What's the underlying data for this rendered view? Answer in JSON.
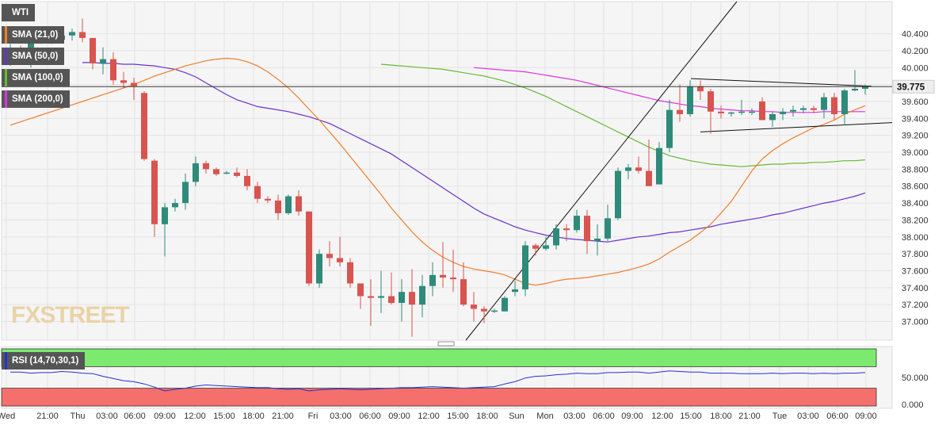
{
  "chart_data": [
    {
      "type": "candlestick",
      "instrument": "WTI",
      "timeframe": "1h",
      "price_label": "39.775",
      "y_ticks": [
        "40.400",
        "40.200",
        "40.000",
        "39.800",
        "39.600",
        "39.400",
        "39.200",
        "39.000",
        "38.800",
        "38.600",
        "38.400",
        "38.200",
        "38.000",
        "37.800",
        "37.600",
        "37.400",
        "37.200",
        "37.000"
      ],
      "ylim": [
        36.78,
        40.78
      ],
      "x_ticks": [
        "Wed",
        "21:00",
        "Thu",
        "03:00",
        "06:00",
        "09:00",
        "12:00",
        "15:00",
        "18:00",
        "21:00",
        "Fri",
        "03:00",
        "06:00",
        "09:00",
        "12:00",
        "15:00",
        "18:00",
        "Sun",
        "Mon",
        "03:00",
        "06:00",
        "09:00",
        "12:00",
        "15:00",
        "18:00",
        "21:00",
        "Tue",
        "03:00",
        "06:00",
        "09:00"
      ],
      "legend": [
        "WTI",
        "SMA (21,0)",
        "SMA (50,0)",
        "SMA (100,0)",
        "SMA (200,0)"
      ],
      "colors": {
        "up": "#2e8b7a",
        "down": "#d9534f",
        "sma21": "#f07d2a",
        "sma50": "#6633cc",
        "sma100": "#66bb33",
        "sma200": "#dd33dd",
        "price_line": "#3a3a3a",
        "legend_bg": "#555555"
      },
      "candles": [
        [
          40.1,
          40.28,
          40.02,
          40.22
        ],
        [
          40.22,
          40.26,
          40.05,
          40.1
        ],
        [
          40.1,
          40.4,
          40.0,
          40.38
        ],
        [
          40.38,
          40.42,
          40.28,
          40.32
        ],
        [
          40.32,
          40.36,
          40.28,
          40.33
        ],
        [
          40.33,
          40.4,
          40.3,
          40.38
        ],
        [
          40.38,
          40.46,
          40.32,
          40.42
        ],
        [
          40.42,
          40.58,
          40.3,
          40.35
        ],
        [
          40.35,
          40.35,
          39.98,
          40.05
        ],
        [
          40.05,
          40.24,
          39.92,
          40.1
        ],
        [
          40.1,
          40.18,
          39.8,
          39.85
        ],
        [
          39.85,
          39.95,
          39.76,
          39.82
        ],
        [
          39.82,
          39.88,
          39.62,
          39.78
        ],
        [
          39.7,
          39.72,
          38.9,
          38.92
        ],
        [
          38.9,
          38.92,
          38.0,
          38.15
        ],
        [
          38.15,
          38.4,
          37.77,
          38.35
        ],
        [
          38.35,
          38.45,
          38.3,
          38.4
        ],
        [
          38.4,
          38.75,
          38.32,
          38.65
        ],
        [
          38.65,
          38.95,
          38.6,
          38.87
        ],
        [
          38.87,
          38.9,
          38.75,
          38.8
        ],
        [
          38.8,
          38.82,
          38.72,
          38.74
        ],
        [
          38.75,
          38.78,
          38.74,
          38.76
        ],
        [
          38.76,
          38.82,
          38.7,
          38.72
        ],
        [
          38.72,
          38.8,
          38.55,
          38.6
        ],
        [
          38.6,
          38.65,
          38.4,
          38.45
        ],
        [
          38.45,
          38.48,
          38.4,
          38.43
        ],
        [
          38.43,
          38.5,
          38.2,
          38.28
        ],
        [
          38.28,
          38.5,
          38.26,
          38.48
        ],
        [
          38.48,
          38.55,
          38.25,
          38.3
        ],
        [
          38.3,
          38.3,
          37.42,
          37.45
        ],
        [
          37.45,
          37.85,
          37.4,
          37.8
        ],
        [
          37.8,
          37.95,
          37.65,
          37.75
        ],
        [
          37.75,
          38.0,
          37.65,
          37.7
        ],
        [
          37.7,
          37.75,
          37.4,
          37.45
        ],
        [
          37.45,
          37.45,
          37.15,
          37.3
        ],
        [
          37.3,
          37.5,
          36.95,
          37.28
        ],
        [
          37.28,
          37.6,
          37.1,
          37.3
        ],
        [
          37.3,
          37.58,
          37.2,
          37.22
        ],
        [
          37.22,
          37.5,
          37.0,
          37.35
        ],
        [
          37.35,
          37.62,
          36.82,
          37.2
        ],
        [
          37.2,
          37.55,
          37.05,
          37.42
        ],
        [
          37.42,
          37.7,
          37.3,
          37.55
        ],
        [
          37.55,
          37.94,
          37.4,
          37.52
        ],
        [
          37.52,
          37.85,
          37.35,
          37.5
        ],
        [
          37.5,
          37.7,
          37.18,
          37.2
        ],
        [
          37.2,
          37.35,
          37.0,
          37.15
        ],
        [
          37.15,
          37.18,
          36.98,
          37.12
        ],
        [
          37.12,
          37.15,
          37.1,
          37.13
        ],
        [
          37.12,
          37.3,
          37.12,
          37.28
        ],
        [
          37.35,
          37.48,
          37.3,
          37.38
        ],
        [
          37.38,
          37.95,
          37.3,
          37.9
        ],
        [
          37.9,
          37.92,
          37.78,
          37.86
        ],
        [
          37.86,
          38.0,
          37.84,
          37.9
        ],
        [
          37.9,
          38.15,
          37.85,
          38.1
        ],
        [
          38.1,
          38.15,
          37.95,
          38.08
        ],
        [
          38.08,
          38.32,
          38.05,
          38.25
        ],
        [
          38.25,
          38.32,
          37.8,
          37.95
        ],
        [
          37.95,
          38.15,
          37.78,
          37.98
        ],
        [
          37.98,
          38.38,
          37.95,
          38.22
        ],
        [
          38.22,
          38.82,
          38.2,
          38.78
        ],
        [
          38.78,
          38.86,
          38.68,
          38.82
        ],
        [
          38.82,
          38.95,
          38.75,
          38.78
        ],
        [
          38.78,
          39.15,
          38.6,
          38.6
        ],
        [
          38.62,
          39.12,
          38.62,
          39.05
        ],
        [
          39.05,
          39.62,
          39.0,
          39.5
        ],
        [
          39.5,
          39.8,
          39.36,
          39.45
        ],
        [
          39.45,
          39.85,
          39.42,
          39.78
        ],
        [
          39.78,
          39.85,
          39.62,
          39.72
        ],
        [
          39.72,
          39.75,
          39.22,
          39.48
        ],
        [
          39.48,
          39.55,
          39.4,
          39.46
        ],
        [
          39.46,
          39.48,
          39.42,
          39.47
        ],
        [
          39.47,
          39.62,
          39.44,
          39.48
        ],
        [
          39.48,
          39.52,
          39.44,
          39.48
        ],
        [
          39.6,
          39.65,
          39.42,
          39.38
        ],
        [
          39.38,
          39.48,
          39.3,
          39.45
        ],
        [
          39.45,
          39.52,
          39.38,
          39.48
        ],
        [
          39.48,
          39.55,
          39.42,
          39.5
        ],
        [
          39.5,
          39.55,
          39.46,
          39.52
        ],
        [
          39.52,
          39.55,
          39.46,
          39.5
        ],
        [
          39.5,
          39.7,
          39.4,
          39.65
        ],
        [
          39.65,
          39.7,
          39.38,
          39.45
        ],
        [
          39.45,
          39.75,
          39.32,
          39.73
        ],
        [
          39.73,
          39.97,
          39.72,
          39.75
        ],
        [
          39.75,
          39.8,
          39.68,
          39.78
        ]
      ],
      "sma21": [
        39.32,
        39.36,
        39.4,
        39.44,
        39.48,
        39.52,
        39.56,
        39.6,
        39.64,
        39.68,
        39.72,
        39.76,
        39.8,
        39.85,
        39.9,
        39.94,
        39.98,
        40.02,
        40.05,
        40.08,
        40.1,
        40.11,
        40.1,
        40.07,
        40.02,
        39.95,
        39.86,
        39.76,
        39.64,
        39.51,
        39.38,
        39.24,
        39.1,
        38.95,
        38.8,
        38.65,
        38.5,
        38.34,
        38.2,
        38.06,
        37.94,
        37.84,
        37.76,
        37.7,
        37.65,
        37.62,
        37.6,
        37.58,
        37.55,
        37.5,
        37.45,
        37.43,
        37.45,
        37.48,
        37.5,
        37.51,
        37.52,
        37.54,
        37.56,
        37.58,
        37.61,
        37.64,
        37.68,
        37.74,
        37.82,
        37.89,
        37.96,
        38.05,
        38.15,
        38.28,
        38.42,
        38.6,
        38.78,
        38.92,
        39.02,
        39.1,
        39.17,
        39.23,
        39.29,
        39.33,
        39.38,
        39.45,
        39.5,
        39.55
      ],
      "sma50": [
        40.06,
        40.06,
        40.05,
        40.05,
        40.04,
        40.04,
        40.03,
        40.02,
        40.0,
        39.98,
        39.94,
        39.89,
        39.82,
        39.75,
        39.68,
        39.62,
        39.58,
        39.54,
        39.52,
        39.5,
        39.48,
        39.45,
        39.42,
        39.38,
        39.34,
        39.28,
        39.22,
        39.16,
        39.1,
        39.04,
        38.98,
        38.9,
        38.82,
        38.74,
        38.66,
        38.58,
        38.5,
        38.42,
        38.34,
        38.27,
        38.22,
        38.17,
        38.12,
        38.08,
        38.05,
        38.02,
        38.0,
        37.98,
        37.97,
        37.96,
        37.95,
        37.94,
        37.96,
        37.98,
        38.0,
        38.01,
        38.03,
        38.05,
        38.06,
        38.08,
        38.1,
        38.12,
        38.15,
        38.17,
        38.19,
        38.21,
        38.23,
        38.26,
        38.28,
        38.31,
        38.34,
        38.37,
        38.4,
        38.42,
        38.45,
        38.48,
        38.52
      ],
      "sma100": [
        40.04,
        40.03,
        40.02,
        40.01,
        40.0,
        39.99,
        39.98,
        39.96,
        39.94,
        39.92,
        39.9,
        39.87,
        39.84,
        39.8,
        39.76,
        39.71,
        39.66,
        39.6,
        39.54,
        39.48,
        39.42,
        39.36,
        39.3,
        39.24,
        39.18,
        39.12,
        39.06,
        39.01,
        38.96,
        38.93,
        38.9,
        38.88,
        38.86,
        38.85,
        38.84,
        38.83,
        38.84,
        38.85,
        38.86,
        38.86,
        38.87,
        38.87,
        38.88,
        38.88,
        38.89,
        38.9,
        38.9,
        38.91
      ],
      "sma200": [
        40.0,
        39.99,
        39.98,
        39.97,
        39.96,
        39.95,
        39.93,
        39.91,
        39.89,
        39.87,
        39.85,
        39.82,
        39.79,
        39.76,
        39.73,
        39.7,
        39.67,
        39.64,
        39.61,
        39.59,
        39.57,
        39.55,
        39.54,
        39.52,
        39.51,
        39.5,
        39.49,
        39.49,
        39.48,
        39.48,
        39.47,
        39.47,
        39.47,
        39.47,
        39.48,
        39.48,
        39.48,
        39.48,
        39.48
      ]
    },
    {
      "type": "line",
      "indicator": "RSI (14,70,30,1)",
      "y_ticks": [
        "50.000",
        "0.000"
      ],
      "ylim": [
        0,
        100
      ],
      "overbought": 70,
      "oversold": 30,
      "color": "#2233cc",
      "zone_colors": {
        "over": "#7bea6e",
        "under": "#f56f6c"
      },
      "values": [
        60,
        60,
        58,
        59,
        59,
        61,
        60,
        58,
        57,
        52,
        48,
        44,
        42,
        38,
        32,
        25,
        28,
        30,
        34,
        36,
        35,
        34,
        33,
        32,
        31,
        31,
        29,
        28,
        29,
        25,
        27,
        28,
        29,
        28,
        27,
        28,
        29,
        30,
        31,
        31,
        32,
        33,
        32,
        31,
        30,
        31,
        32,
        33,
        38,
        42,
        49,
        52,
        53,
        55,
        56,
        58,
        57,
        57,
        59,
        59,
        60,
        60,
        58,
        60,
        62,
        61,
        60,
        60,
        58,
        58,
        58,
        57,
        57,
        57,
        58,
        57,
        58,
        58,
        57,
        58,
        57,
        58,
        58,
        59
      ]
    }
  ]
}
